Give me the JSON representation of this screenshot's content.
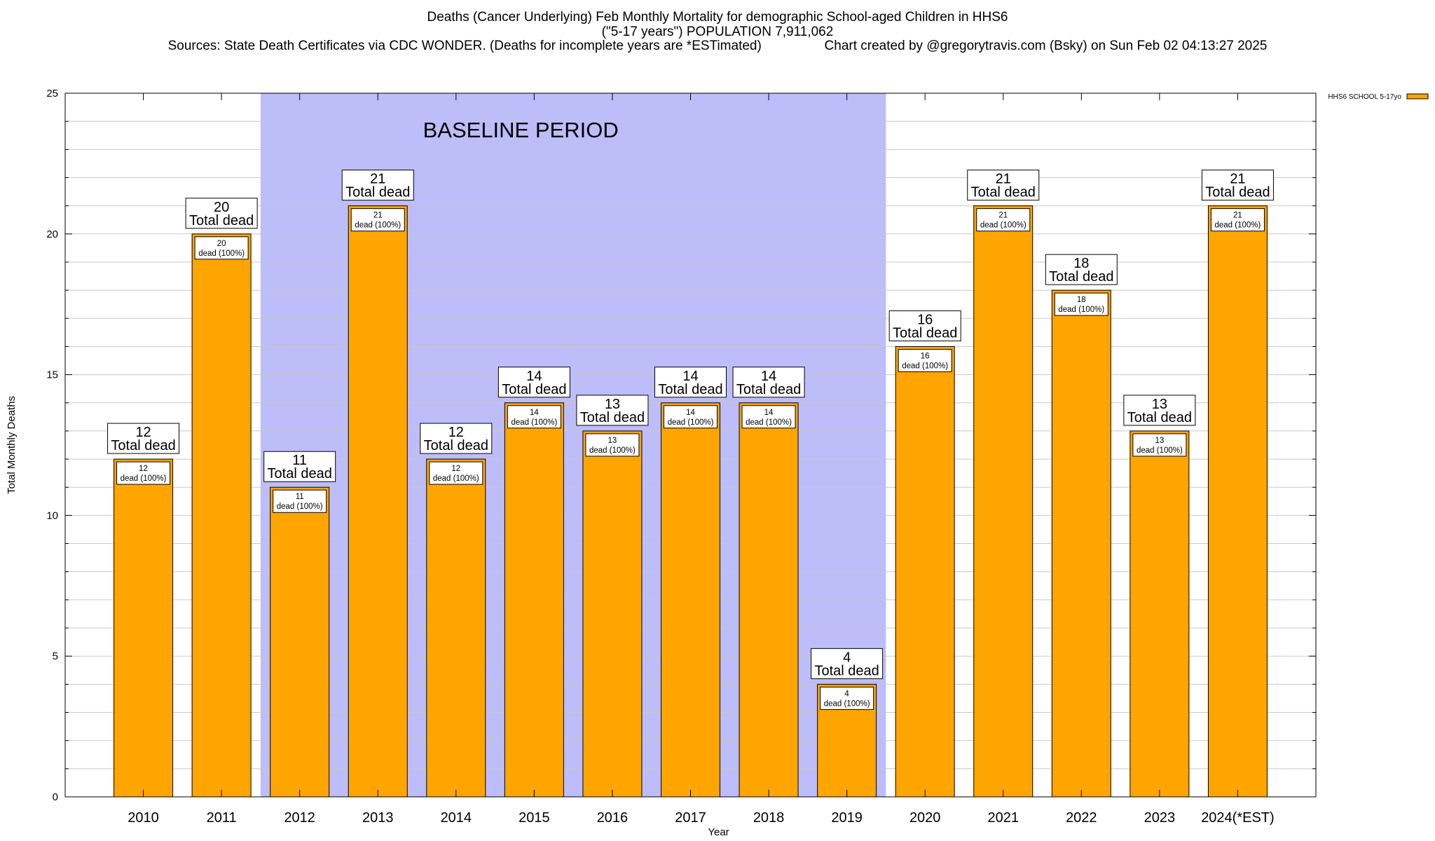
{
  "header": {
    "title_line1": "Deaths (Cancer Underlying) Feb Monthly Mortality for demographic School-aged Children in HHS6",
    "title_line2": "(\"5-17 years\") POPULATION 7,911,062",
    "title_line3": "Sources: State Death Certificates via CDC WONDER. (Deaths for incomplete years are *ESTimated)                 Chart created by @gregorytravis.com (Bsky) on Sun Feb 02 04:13:27 2025"
  },
  "chart_data": {
    "type": "bar",
    "title": "Deaths (Cancer Underlying) Feb Monthly Mortality for demographic School-aged Children in HHS6",
    "xlabel": "Year",
    "ylabel": "Total Monthly Deaths",
    "ylim": [
      0,
      25
    ],
    "yticks": [
      0,
      5,
      10,
      15,
      20,
      25
    ],
    "grid": true,
    "legend_position": "top-right",
    "categories": [
      "2010",
      "2011",
      "2012",
      "2013",
      "2014",
      "2015",
      "2016",
      "2017",
      "2018",
      "2019",
      "2020",
      "2021",
      "2022",
      "2023",
      "2024(*EST)"
    ],
    "series": [
      {
        "name": "HHS6 SCHOOL 5-17yo",
        "color": "#ffa500",
        "values": [
          12,
          20,
          11,
          21,
          12,
          14,
          13,
          14,
          14,
          4,
          16,
          21,
          18,
          13,
          21
        ]
      }
    ],
    "total_label_suffix": "Total dead",
    "inner_label_suffix": "dead (100%)",
    "baseline": {
      "label": "BASELINE PERIOD",
      "start": "2012",
      "end": "2019",
      "color": "#bdbdfa"
    }
  }
}
